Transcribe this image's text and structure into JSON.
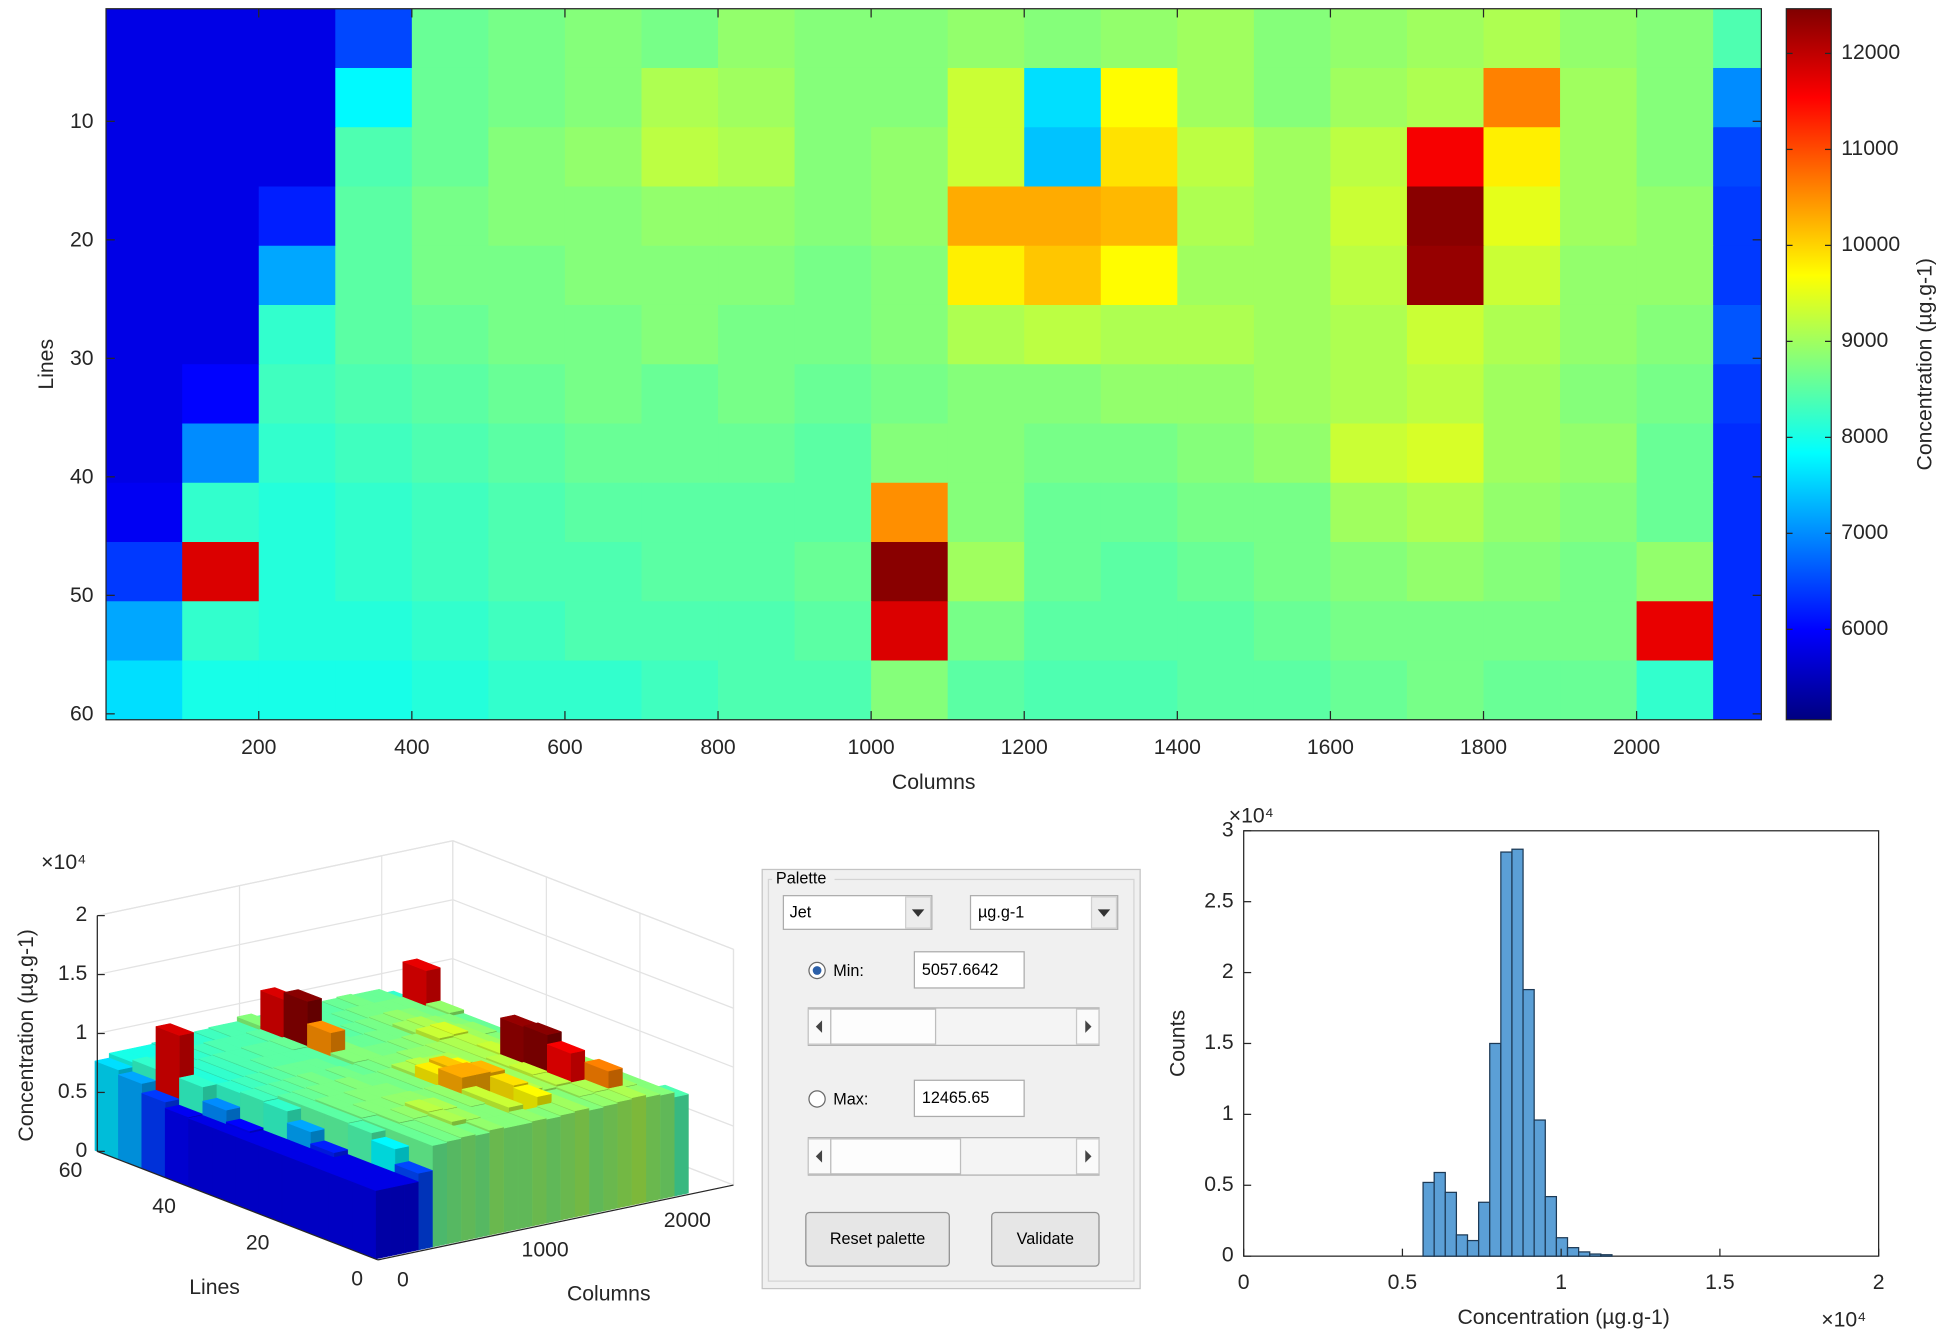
{
  "chart_data": [
    {
      "type": "heatmap",
      "xlabel": "Columns",
      "ylabel": "Lines",
      "x": [
        50,
        150,
        250,
        350,
        450,
        550,
        650,
        750,
        850,
        950,
        1050,
        1150,
        1250,
        1350,
        1450,
        1550,
        1650,
        1750,
        1850,
        1950,
        2050,
        2150
      ],
      "y": [
        3,
        8,
        13,
        18,
        23,
        28,
        33,
        38,
        43,
        48,
        53,
        58
      ],
      "values": [
        [
          5800,
          5800,
          5800,
          6500,
          8600,
          8700,
          8800,
          8700,
          8900,
          8800,
          8800,
          8900,
          8800,
          8900,
          9000,
          8800,
          8900,
          9000,
          9100,
          8900,
          8800,
          8400
        ],
        [
          5800,
          5800,
          5800,
          7800,
          8600,
          8700,
          8800,
          9100,
          9000,
          8800,
          8800,
          9300,
          7600,
          9700,
          9000,
          8800,
          9000,
          9100,
          10600,
          9000,
          8800,
          7000
        ],
        [
          5800,
          5800,
          5800,
          8400,
          8600,
          8800,
          8900,
          9200,
          9100,
          8800,
          8900,
          9300,
          7400,
          9900,
          9200,
          9000,
          9200,
          11600,
          9800,
          9000,
          8800,
          6500
        ],
        [
          5800,
          5800,
          6200,
          8500,
          8700,
          8800,
          8800,
          8900,
          8900,
          8800,
          8900,
          10300,
          10300,
          10200,
          9100,
          9000,
          9300,
          12400,
          9500,
          9000,
          8900,
          6400
        ],
        [
          5800,
          5800,
          7200,
          8500,
          8700,
          8700,
          8800,
          8800,
          8800,
          8700,
          8800,
          9800,
          10100,
          9700,
          9000,
          9000,
          9200,
          12300,
          9300,
          8900,
          8900,
          6400
        ],
        [
          5800,
          5800,
          8200,
          8500,
          8600,
          8700,
          8700,
          8800,
          8700,
          8700,
          8800,
          9100,
          9200,
          9100,
          9100,
          9000,
          9100,
          9300,
          9100,
          8900,
          8800,
          6600
        ],
        [
          5800,
          6000,
          8300,
          8400,
          8500,
          8600,
          8700,
          8600,
          8700,
          8600,
          8700,
          8800,
          8800,
          8900,
          8900,
          9000,
          9100,
          9200,
          9000,
          8800,
          8700,
          6400
        ],
        [
          5800,
          7000,
          8200,
          8300,
          8400,
          8500,
          8600,
          8600,
          8600,
          8500,
          8800,
          8800,
          8700,
          8700,
          8800,
          8900,
          9300,
          9400,
          9000,
          8900,
          8600,
          6300
        ],
        [
          5900,
          8200,
          8100,
          8200,
          8300,
          8400,
          8500,
          8500,
          8500,
          8500,
          10500,
          8800,
          8600,
          8600,
          8700,
          8700,
          9000,
          9100,
          8900,
          8800,
          8600,
          6300
        ],
        [
          6400,
          11800,
          8100,
          8200,
          8300,
          8400,
          8400,
          8500,
          8500,
          8600,
          12400,
          9000,
          8600,
          8500,
          8600,
          8700,
          8800,
          8900,
          8800,
          8700,
          8900,
          6300
        ],
        [
          7200,
          8200,
          8100,
          8100,
          8200,
          8300,
          8400,
          8400,
          8400,
          8500,
          11800,
          8700,
          8500,
          8500,
          8500,
          8600,
          8700,
          8700,
          8700,
          8700,
          11700,
          6300
        ],
        [
          7600,
          8000,
          8000,
          8000,
          8100,
          8200,
          8200,
          8300,
          8400,
          8400,
          8800,
          8500,
          8400,
          8400,
          8500,
          8500,
          8600,
          8700,
          8600,
          8600,
          8200,
          6300
        ]
      ],
      "xlim": [
        0.5,
        2163
      ],
      "xticks": [
        200,
        400,
        600,
        800,
        1000,
        1200,
        1400,
        1600,
        1800,
        2000
      ],
      "ylim": [
        0.5,
        60.5
      ],
      "yticks": [
        10,
        20,
        30,
        40,
        50,
        60
      ],
      "colormap": "jet",
      "clim": [
        5057.6642,
        12465.65
      ],
      "colorbar_ticks": [
        6000,
        7000,
        8000,
        9000,
        10000,
        11000,
        12000
      ],
      "colorbar_label": "Concentration (µg.g-1)"
    },
    {
      "type": "surface",
      "xlabel": "Columns",
      "ylabel": "Lines",
      "zlabel": "Concentration (µg.g-1)",
      "xlim": [
        0,
        2500
      ],
      "xticks": [
        0,
        1000,
        2000
      ],
      "ylim": [
        0,
        60
      ],
      "yticks": [
        0,
        20,
        40,
        60
      ],
      "zlim": [
        0,
        20000
      ],
      "zticks": [
        0,
        {
          "value": 5000,
          "label": "0.5"
        },
        {
          "value": 10000,
          "label": "1"
        },
        {
          "value": 15000,
          "label": "1.5"
        },
        {
          "value": 20000,
          "label": "2"
        }
      ],
      "z_exponent_label": "×10⁴",
      "grid": true
    },
    {
      "type": "histogram",
      "xlabel": "Concentration (µg.g-1)",
      "ylabel": "Counts",
      "bins": [
        5650,
        6000,
        6350,
        6700,
        7050,
        7400,
        7750,
        8100,
        8450,
        8800,
        9150,
        9500,
        9850,
        10200,
        10550,
        10900,
        11250,
        11600
      ],
      "values": [
        5200,
        5900,
        4500,
        1500,
        1100,
        3800,
        15000,
        28500,
        28700,
        18800,
        9600,
        4200,
        1300,
        600,
        300,
        150,
        100
      ],
      "color": "#5b9fd6",
      "edgecolor": "#1d3a56",
      "xlim": [
        0,
        20000
      ],
      "xticks": [
        0,
        {
          "value": 5000,
          "label": "0.5"
        },
        {
          "value": 10000,
          "label": "1"
        },
        {
          "value": 15000,
          "label": "1.5"
        },
        {
          "value": 20000,
          "label": "2"
        }
      ],
      "ylim": [
        0,
        30000
      ],
      "yticks": [
        0,
        {
          "value": 5000,
          "label": "0.5"
        },
        {
          "value": 10000,
          "label": "1"
        },
        {
          "value": 15000,
          "label": "1.5"
        },
        {
          "value": 20000,
          "label": "2"
        },
        {
          "value": 25000,
          "label": "2.5"
        },
        {
          "value": 30000,
          "label": "3"
        }
      ],
      "x_exponent_label": "×10⁴",
      "y_exponent_label": "×10⁴"
    }
  ],
  "palette_panel": {
    "title": "Palette",
    "colormap": "Jet",
    "unit": "µg.g-1",
    "min_label": "Min:",
    "min_value": "5057.6642",
    "max_label": "Max:",
    "max_value": "12465.65",
    "reset_button": "Reset palette",
    "validate_button": "Validate"
  }
}
